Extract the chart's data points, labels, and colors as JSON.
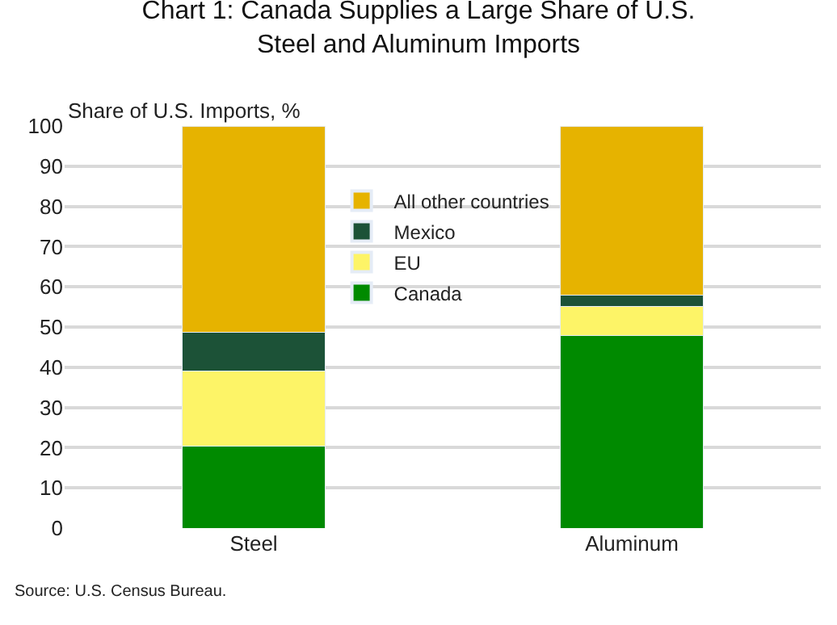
{
  "chart_data": {
    "type": "bar",
    "title": "Chart 1: Canada Supplies a Large Share of U.S.\nSteel and Aluminum Imports",
    "ylabel": "Share of U.S. Imports, %",
    "categories": [
      "Steel",
      "Aluminum"
    ],
    "stacked": true,
    "series": [
      {
        "name": "Canada",
        "color": "#008a00",
        "values": [
          20.3,
          47.9
        ]
      },
      {
        "name": "EU",
        "color": "#fdf467",
        "values": [
          18.8,
          7.2
        ]
      },
      {
        "name": "Mexico",
        "color": "#1c5237",
        "values": [
          9.6,
          2.8
        ]
      },
      {
        "name": "All other countries",
        "color": "#e6b300",
        "values": [
          51.3,
          42.1
        ]
      }
    ],
    "ylim": [
      0,
      100
    ],
    "yticks": [
      0,
      10,
      20,
      30,
      40,
      50,
      60,
      70,
      80,
      90,
      100
    ],
    "grid": "y",
    "legend": "center",
    "annotations": [
      "Source: U.S. Census Bureau."
    ]
  }
}
